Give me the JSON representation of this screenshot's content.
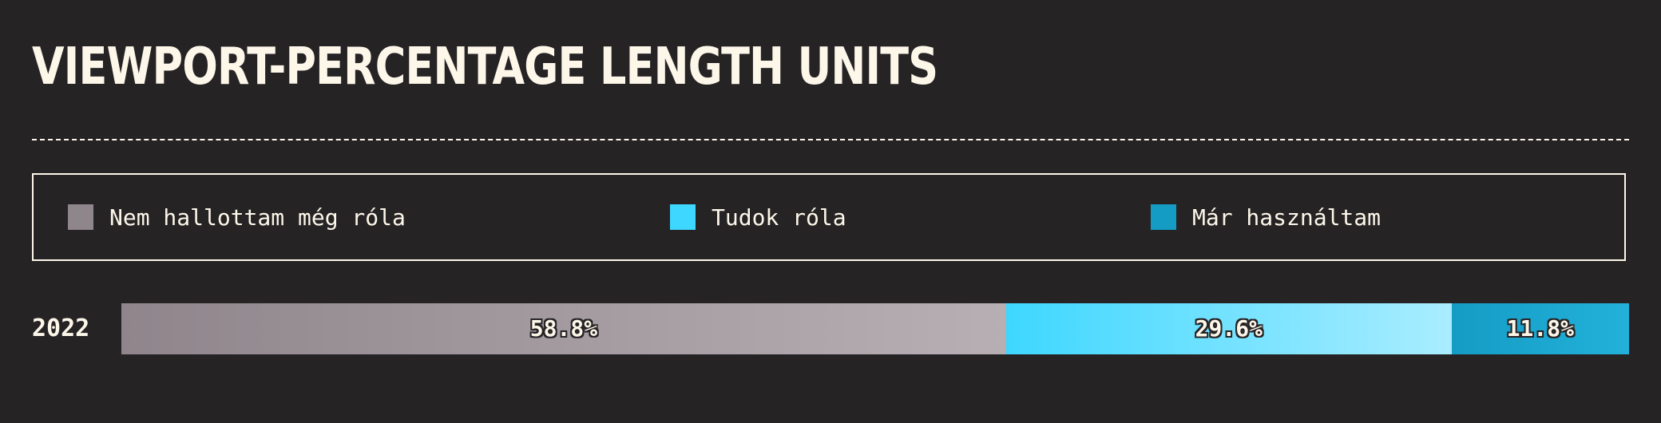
{
  "title": "VIEWPORT-PERCENTAGE LENGTH UNITS",
  "legend": [
    {
      "label": "Nem hallottam még róla",
      "color": "#8f868c"
    },
    {
      "label": "Tudok róla",
      "color": "#3ed7ff"
    },
    {
      "label": "Már használtam",
      "color": "#159cc4"
    }
  ],
  "chart_data": {
    "type": "bar",
    "orientation": "horizontal",
    "stacked": true,
    "normalized": true,
    "title": "VIEWPORT-PERCENTAGE LENGTH UNITS",
    "categories": [
      "2022"
    ],
    "series": [
      {
        "name": "Nem hallottam még róla",
        "values": [
          58.8
        ],
        "labels": [
          "58.8%"
        ],
        "gradient": [
          "#8f868c",
          "#b7afb3"
        ]
      },
      {
        "name": "Tudok róla",
        "values": [
          29.6
        ],
        "labels": [
          "29.6%"
        ],
        "gradient": [
          "#3ed7ff",
          "#aaedff"
        ]
      },
      {
        "name": "Már használtam",
        "values": [
          11.8
        ],
        "labels": [
          "11.8%"
        ],
        "gradient": [
          "#159cc4",
          "#22b1da"
        ]
      }
    ],
    "legend_position": "top"
  }
}
